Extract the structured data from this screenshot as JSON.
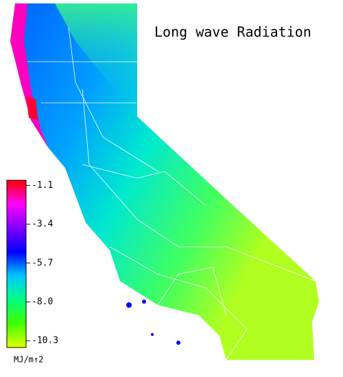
{
  "title": "Long wave Radiation",
  "colorbar": {
    "lim": [
      -10.7,
      -0.8
    ],
    "ticks": [
      -1.1,
      -3.4,
      -5.7,
      {
        "value": -8,
        "label": "-8.0"
      },
      -10.3
    ],
    "colors": [
      "#ff0000",
      "#ff00ff",
      "#8000ff",
      "#0000ff",
      "#00c8ff",
      "#00ff80",
      "#40ff00",
      "#e0ff00"
    ],
    "unit": "MJ/m↑2"
  }
}
